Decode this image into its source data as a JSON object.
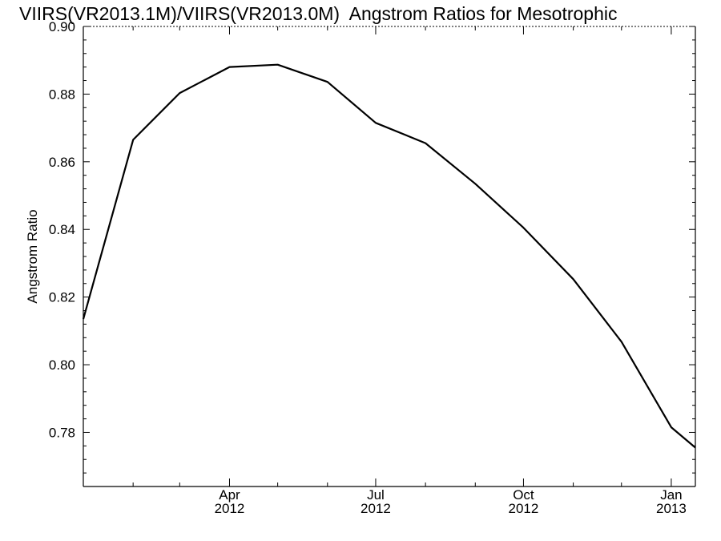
{
  "chart_data": {
    "type": "line",
    "title": "VIIRS(VR2013.1M)/VIIRS(VR2013.0M)  Angstrom Ratios for Mesotrophic",
    "xlabel": "",
    "ylabel": "Angstrom Ratio",
    "xlim": [
      "2012-01-01",
      "2013-01-16"
    ],
    "ylim": [
      0.764,
      0.9
    ],
    "yticks": [
      "0.78",
      "0.80",
      "0.82",
      "0.84",
      "0.86",
      "0.88",
      "0.90"
    ],
    "xticks": [
      {
        "date": "2012-04-01",
        "month": "Apr",
        "year": "2012"
      },
      {
        "date": "2012-07-01",
        "month": "Jul",
        "year": "2012"
      },
      {
        "date": "2012-10-01",
        "month": "Oct",
        "year": "2012"
      },
      {
        "date": "2013-01-01",
        "month": "Jan",
        "year": "2013"
      }
    ],
    "grid": false,
    "series": [
      {
        "color": "#000000",
        "x": [
          "2012-01-01",
          "2012-02-01",
          "2012-03-01",
          "2012-04-01",
          "2012-05-01",
          "2012-06-01",
          "2012-07-01",
          "2012-08-01",
          "2012-09-01",
          "2012-10-01",
          "2012-11-01",
          "2012-12-01",
          "2013-01-01",
          "2013-01-16"
        ],
        "y": [
          0.8135,
          0.8665,
          0.8803,
          0.888,
          0.8887,
          0.8836,
          0.8715,
          0.8655,
          0.8535,
          0.8405,
          0.8253,
          0.8068,
          0.7815,
          0.7755
        ]
      }
    ]
  }
}
